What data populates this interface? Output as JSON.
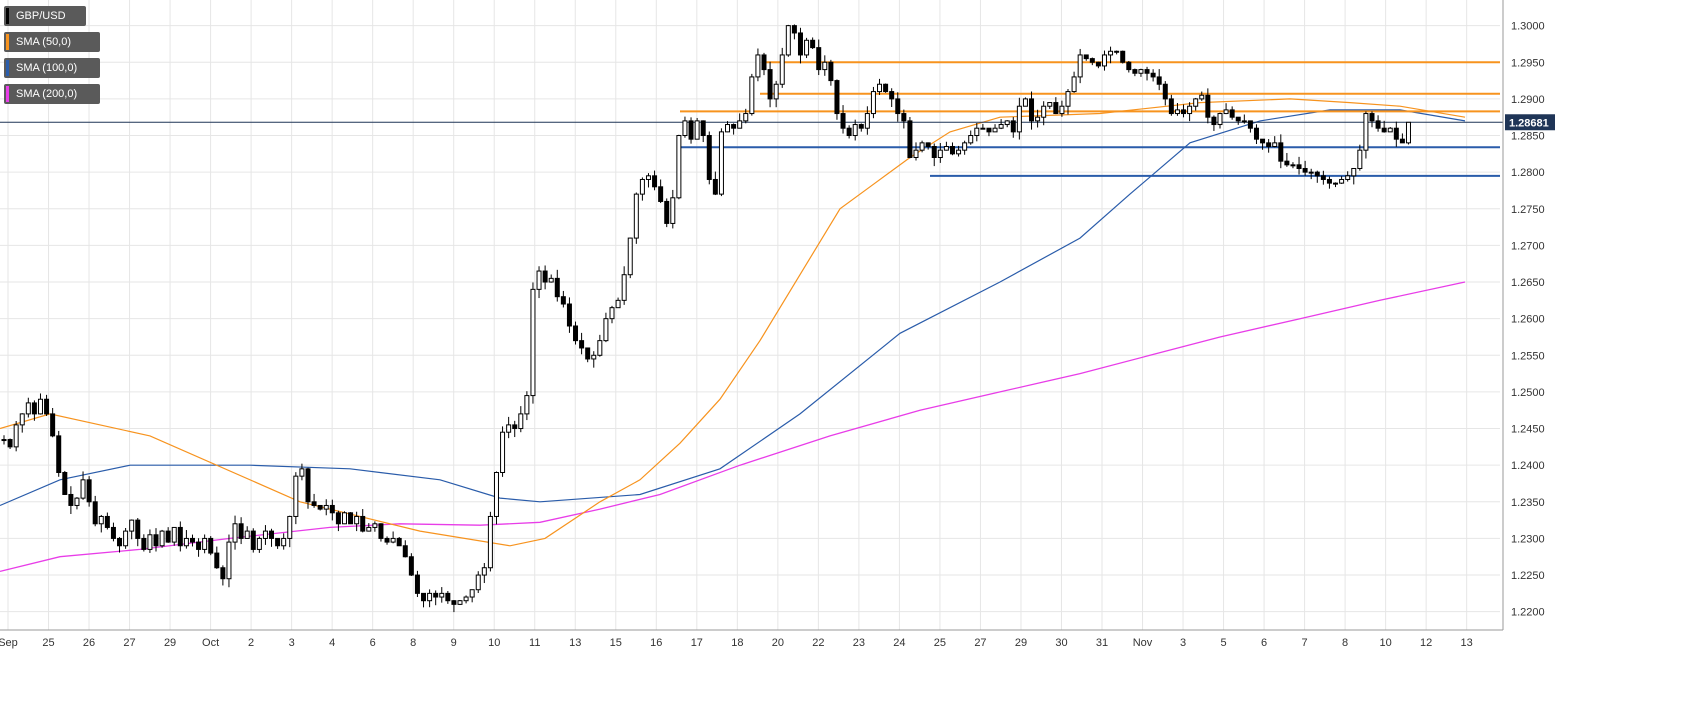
{
  "chart_data": {
    "type": "candlestick",
    "symbol": "GBP/USD",
    "current_price": "1.28681",
    "y_ticks": [
      "1.2200",
      "1.2250",
      "1.2300",
      "1.2350",
      "1.2400",
      "1.2450",
      "1.2500",
      "1.2550",
      "1.2600",
      "1.2650",
      "1.2700",
      "1.2750",
      "1.2800",
      "1.2850",
      "1.2900",
      "1.2950",
      "1.3000"
    ],
    "ylim": [
      1.2175,
      1.3035
    ],
    "x_ticks": [
      "Sep",
      "25",
      "26",
      "27",
      "29",
      "Oct",
      "2",
      "3",
      "4",
      "6",
      "8",
      "9",
      "10",
      "11",
      "13",
      "15",
      "16",
      "17",
      "18",
      "20",
      "22",
      "23",
      "24",
      "25",
      "27",
      "29",
      "30",
      "31",
      "Nov",
      "3",
      "5",
      "6",
      "7",
      "8",
      "10",
      "12",
      "13"
    ],
    "grid": true,
    "legend": [
      {
        "name": "GBP/USD",
        "color": "#000000"
      },
      {
        "name": "SMA (50,0)",
        "color": "#f7931e"
      },
      {
        "name": "SMA (100,0)",
        "color": "#2a5caa"
      },
      {
        "name": "SMA (200,0)",
        "color": "#e83de8"
      }
    ],
    "close_series": [
      1.2435,
      1.2425,
      1.2455,
      1.247,
      1.2485,
      1.247,
      1.249,
      1.247,
      1.244,
      1.239,
      1.236,
      1.2345,
      1.2355,
      1.238,
      1.235,
      1.232,
      1.233,
      1.2315,
      1.23,
      1.229,
      1.231,
      1.2325,
      1.23,
      1.2285,
      1.2305,
      1.229,
      1.231,
      1.2295,
      1.2315,
      1.229,
      1.23,
      1.2295,
      1.2285,
      1.23,
      1.228,
      1.226,
      1.2245,
      1.2295,
      1.232,
      1.23,
      1.231,
      1.2285,
      1.23,
      1.231,
      1.23,
      1.229,
      1.23,
      1.233,
      1.2385,
      1.2395,
      1.235,
      1.2345,
      1.234,
      1.2345,
      1.2335,
      1.232,
      1.2335,
      1.232,
      1.233,
      1.231,
      1.2315,
      1.232,
      1.23,
      1.2295,
      1.23,
      1.229,
      1.2275,
      1.225,
      1.2225,
      1.2215,
      1.2225,
      1.222,
      1.2225,
      1.2215,
      1.221,
      1.2215,
      1.222,
      1.223,
      1.225,
      1.226,
      1.233,
      1.239,
      1.2445,
      1.2455,
      1.245,
      1.247,
      1.2495,
      1.264,
      1.2665,
      1.265,
      1.2655,
      1.263,
      1.262,
      1.259,
      1.257,
      1.256,
      1.2545,
      1.255,
      1.257,
      1.26,
      1.2615,
      1.2625,
      1.266,
      1.271,
      1.277,
      1.279,
      1.2795,
      1.278,
      1.276,
      1.273,
      1.2765,
      1.285,
      1.287,
      1.2845,
      1.287,
      1.285,
      1.279,
      1.277,
      1.2855,
      1.2865,
      1.286,
      1.287,
      1.288,
      1.293,
      1.296,
      1.294,
      1.29,
      1.292,
      1.296,
      1.3,
      1.299,
      1.296,
      1.298,
      1.297,
      1.294,
      1.295,
      1.2925,
      1.288,
      1.286,
      1.285,
      1.2865,
      1.286,
      1.288,
      1.291,
      1.292,
      1.291,
      1.29,
      1.288,
      1.287,
      1.282,
      1.283,
      1.284,
      1.2835,
      1.282,
      1.283,
      1.2835,
      1.2825,
      1.283,
      1.284,
      1.285,
      1.286,
      1.286,
      1.2855,
      1.286,
      1.2865,
      1.287,
      1.2855,
      1.289,
      1.29,
      1.287,
      1.2875,
      1.289,
      1.2895,
      1.288,
      1.289,
      1.291,
      1.293,
      1.296,
      1.2955,
      1.295,
      1.2945,
      1.296,
      1.2965,
      1.2965,
      1.295,
      1.294,
      1.2935,
      1.294,
      1.2935,
      1.293,
      1.292,
      1.29,
      1.288,
      1.2885,
      1.288,
      1.289,
      1.29,
      1.2905,
      1.2875,
      1.2865,
      1.288,
      1.2885,
      1.2875,
      1.287,
      1.287,
      1.286,
      1.2845,
      1.284,
      1.2835,
      1.284,
      1.2815,
      1.281,
      1.281,
      1.2805,
      1.28,
      1.28,
      1.2795,
      1.279,
      1.2785,
      1.2785,
      1.279,
      1.2795,
      1.2805,
      1.283,
      1.288,
      1.287,
      1.286,
      1.2855,
      1.286,
      1.2845,
      1.284,
      1.2868
    ],
    "candle_x_start": 0,
    "candle_spacing": 6.08,
    "sma_50": [
      [
        0,
        1.245
      ],
      [
        50,
        1.247
      ],
      [
        150,
        1.244
      ],
      [
        300,
        1.235
      ],
      [
        420,
        1.231
      ],
      [
        510,
        1.229
      ],
      [
        545,
        1.23
      ],
      [
        600,
        1.235
      ],
      [
        640,
        1.238
      ],
      [
        680,
        1.243
      ],
      [
        720,
        1.249
      ],
      [
        760,
        1.257
      ],
      [
        800,
        1.266
      ],
      [
        840,
        1.275
      ],
      [
        870,
        1.278
      ],
      [
        910,
        1.282
      ],
      [
        950,
        1.2855
      ],
      [
        1000,
        1.2875
      ],
      [
        1100,
        1.288
      ],
      [
        1200,
        1.2895
      ],
      [
        1290,
        1.29
      ],
      [
        1350,
        1.2895
      ],
      [
        1400,
        1.289
      ],
      [
        1465,
        1.2875
      ]
    ],
    "sma_100": [
      [
        0,
        1.2345
      ],
      [
        60,
        1.238
      ],
      [
        130,
        1.24
      ],
      [
        250,
        1.24
      ],
      [
        350,
        1.2395
      ],
      [
        440,
        1.238
      ],
      [
        500,
        1.2355
      ],
      [
        540,
        1.235
      ],
      [
        640,
        1.236
      ],
      [
        720,
        1.2395
      ],
      [
        800,
        1.247
      ],
      [
        900,
        1.258
      ],
      [
        1000,
        1.265
      ],
      [
        1080,
        1.271
      ],
      [
        1130,
        1.277
      ],
      [
        1190,
        1.284
      ],
      [
        1260,
        1.287
      ],
      [
        1330,
        1.2885
      ],
      [
        1400,
        1.2885
      ],
      [
        1465,
        1.287
      ]
    ],
    "sma_200": [
      [
        0,
        1.2255
      ],
      [
        60,
        1.2275
      ],
      [
        140,
        1.2285
      ],
      [
        230,
        1.23
      ],
      [
        330,
        1.2315
      ],
      [
        400,
        1.232
      ],
      [
        480,
        1.2318
      ],
      [
        540,
        1.2322
      ],
      [
        600,
        1.234
      ],
      [
        660,
        1.236
      ],
      [
        740,
        1.24
      ],
      [
        830,
        1.244
      ],
      [
        920,
        1.2475
      ],
      [
        1000,
        1.25
      ],
      [
        1080,
        1.2525
      ],
      [
        1150,
        1.255
      ],
      [
        1220,
        1.2575
      ],
      [
        1300,
        1.26
      ],
      [
        1380,
        1.2625
      ],
      [
        1465,
        1.265
      ]
    ],
    "resistance_lines": [
      1.295,
      1.2907,
      1.2883
    ],
    "support_lines": [
      1.2834,
      1.2795
    ]
  },
  "colors": {
    "orange": "#f7931e",
    "blue": "#2a5caa",
    "magenta": "#e83de8",
    "grid": "#e6e6e6",
    "price_tag_bg": "#1f3557"
  }
}
